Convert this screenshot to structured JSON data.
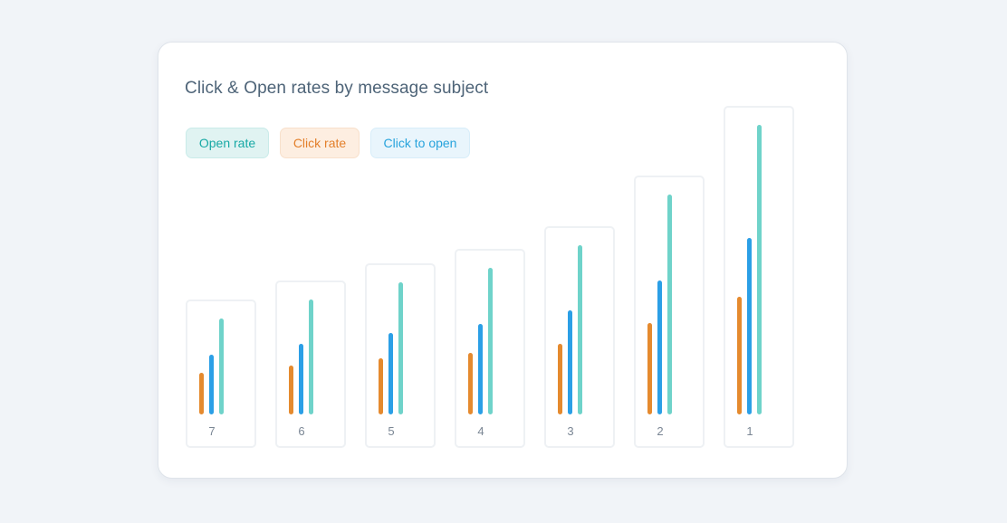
{
  "chart_data": {
    "type": "bar",
    "title": "Click & Open rates by message subject",
    "categories": [
      "7",
      "6",
      "5",
      "4",
      "3",
      "2",
      "1"
    ],
    "series": [
      {
        "name": "Click rate",
        "color": "#e58a2e",
        "values": [
          46,
          54,
          62,
          68,
          78,
          101,
          130
        ]
      },
      {
        "name": "Click to open",
        "color": "#2b9fe6",
        "values": [
          66,
          78,
          90,
          100,
          115,
          148,
          195
        ]
      },
      {
        "name": "Open rate",
        "color": "#6fd3ca",
        "values": [
          106,
          127,
          146,
          162,
          187,
          243,
          320
        ]
      }
    ],
    "ylim": [
      0,
      320
    ],
    "legend": [
      {
        "label": "Open rate",
        "text_color": "#17a9a5",
        "bg": "#e0f3f2",
        "border": "#c9ebe9"
      },
      {
        "label": "Click rate",
        "text_color": "#e37f2a",
        "bg": "#fdeee1",
        "border": "#f8e0cb"
      },
      {
        "label": "Click to open",
        "text_color": "#27a3dc",
        "bg": "#e9f5fc",
        "border": "#d7edf9"
      }
    ],
    "legend_position": "top-left",
    "grid": false
  }
}
